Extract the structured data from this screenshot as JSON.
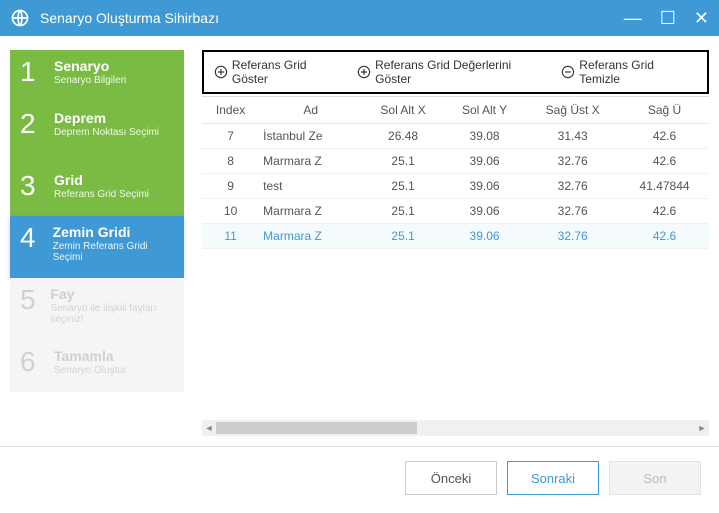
{
  "window": {
    "title": "Senaryo Oluşturma Sihirbazı"
  },
  "steps": [
    {
      "num": "1",
      "title": "Senaryo",
      "sub": "Senaryo Bilgileri",
      "cls": "green"
    },
    {
      "num": "2",
      "title": "Deprem",
      "sub": "Deprem Noktası Seçimi",
      "cls": "green tall"
    },
    {
      "num": "3",
      "title": "Grid",
      "sub": "Referans Grid Seçimi",
      "cls": "green"
    },
    {
      "num": "4",
      "title": "Zemin Gridi",
      "sub": "Zemin Referans Gridi Seçimi",
      "cls": "blue tall"
    },
    {
      "num": "5",
      "title": "Fay",
      "sub": "Senaryo ile ilişkili fayları seçiniz!",
      "cls": "grey tall"
    },
    {
      "num": "6",
      "title": "Tamamla",
      "sub": "Senaryo Oluştur",
      "cls": "grey"
    }
  ],
  "toolbar": {
    "show": "Referans Grid Göster",
    "showValues": "Referans Grid Değerlerini Göster",
    "clear": "Referans Grid Temizle"
  },
  "columns": [
    "Index",
    "Ad",
    "Sol Alt X",
    "Sol Alt Y",
    "Sağ Üst X",
    "Sağ Ü"
  ],
  "rows": [
    {
      "idx": "7",
      "ad": "İstanbul Ze",
      "sax": "26.48",
      "say": "39.08",
      "sux": "31.43",
      "suy": "42.6"
    },
    {
      "idx": "8",
      "ad": "Marmara Z",
      "sax": "25.1",
      "say": "39.06",
      "sux": "32.76",
      "suy": "42.6"
    },
    {
      "idx": "9",
      "ad": "test",
      "sax": "25.1",
      "say": "39.06",
      "sux": "32.76",
      "suy": "41.47844"
    },
    {
      "idx": "10",
      "ad": "Marmara Z",
      "sax": "25.1",
      "say": "39.06",
      "sux": "32.76",
      "suy": "42.6"
    },
    {
      "idx": "11",
      "ad": "Marmara Z",
      "sax": "25.1",
      "say": "39.06",
      "sux": "32.76",
      "suy": "42.6",
      "selected": true
    }
  ],
  "footer": {
    "prev": "Önceki",
    "next": "Sonraki",
    "finish": "Son"
  },
  "colors": {
    "accent": "#3e99d4",
    "green": "#79bb43"
  }
}
